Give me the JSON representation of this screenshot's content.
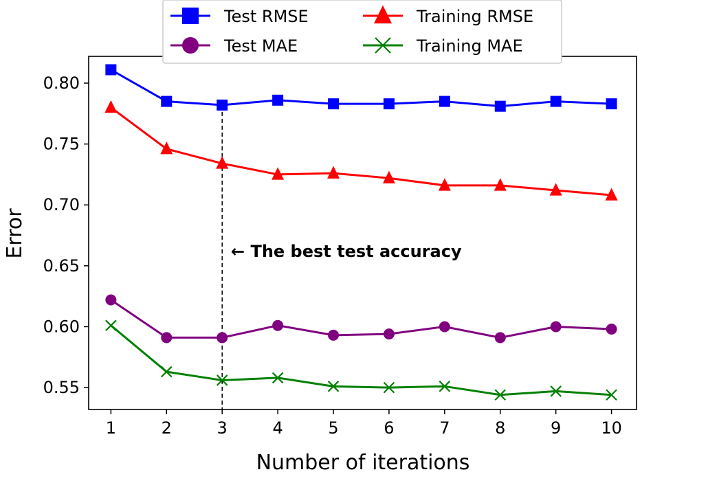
{
  "chart_data": {
    "type": "line",
    "xlabel": "Number of iterations",
    "ylabel": "Error",
    "xlim": [
      0.6,
      10.45
    ],
    "ylim": [
      0.532,
      0.822
    ],
    "xticks": [
      1,
      2,
      3,
      4,
      5,
      6,
      7,
      8,
      9,
      10
    ],
    "yticks": [
      0.55,
      0.6,
      0.65,
      0.7,
      0.75,
      0.8
    ],
    "ytick_labels": [
      "0.55",
      "0.60",
      "0.65",
      "0.70",
      "0.75",
      "0.80"
    ],
    "x": [
      1,
      2,
      3,
      4,
      5,
      6,
      7,
      8,
      9,
      10
    ],
    "series": [
      {
        "name": "Test RMSE",
        "color": "#0000ff",
        "marker": "square",
        "values": [
          0.811,
          0.785,
          0.782,
          0.786,
          0.783,
          0.783,
          0.785,
          0.781,
          0.785,
          0.783
        ]
      },
      {
        "name": "Training RMSE",
        "color": "#ff0000",
        "marker": "triangle",
        "values": [
          0.78,
          0.746,
          0.734,
          0.725,
          0.726,
          0.722,
          0.716,
          0.716,
          0.712,
          0.708
        ]
      },
      {
        "name": "Test MAE",
        "color": "#800080",
        "marker": "circle",
        "values": [
          0.622,
          0.591,
          0.591,
          0.601,
          0.593,
          0.594,
          0.6,
          0.591,
          0.6,
          0.598
        ]
      },
      {
        "name": "Training MAE",
        "color": "#008000",
        "marker": "x",
        "values": [
          0.601,
          0.563,
          0.556,
          0.558,
          0.551,
          0.55,
          0.551,
          0.544,
          0.547,
          0.544
        ]
      }
    ],
    "legend_order": [
      0,
      1,
      2,
      3
    ],
    "legend_position": "top-center, above plot",
    "annotation": {
      "text": "← The best test accuracy",
      "x": 3,
      "y": 0.657,
      "vline_x": 3,
      "vline_style": "dashed"
    },
    "grid": false
  }
}
